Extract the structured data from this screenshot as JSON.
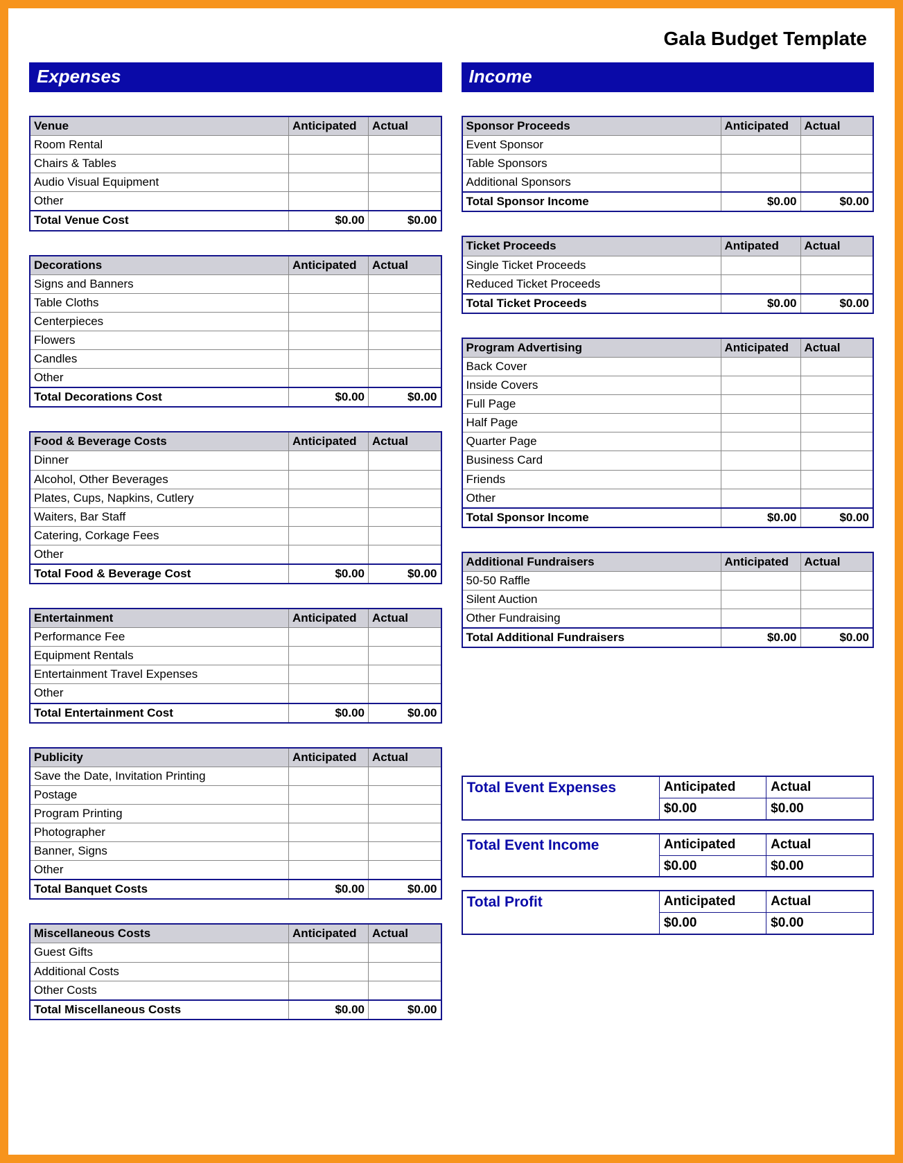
{
  "page_title": "Gala Budget Template",
  "colors": {
    "frame_border": "#f7941d",
    "banner_bg": "#0a0aa8",
    "banner_text": "#ffffff",
    "table_border": "#14148c",
    "cell_border": "#888888",
    "header_bg": "#d0d0d8",
    "summary_label_color": "#0a0aa8"
  },
  "headers": {
    "anticipated": "Anticipated",
    "antipated": "Antipated",
    "actual": "Actual"
  },
  "expenses": {
    "banner": "Expenses",
    "sections": [
      {
        "title": "Venue",
        "rows": [
          "Room Rental",
          "Chairs & Tables",
          "Audio Visual Equipment",
          "Other"
        ],
        "total_label": "Total Venue Cost",
        "total_ant": "$0.00",
        "total_act": "$0.00"
      },
      {
        "title": "Decorations",
        "rows": [
          "Signs and Banners",
          "Table Cloths",
          "Centerpieces",
          "Flowers",
          "Candles",
          "Other"
        ],
        "total_label": "Total Decorations Cost",
        "total_ant": "$0.00",
        "total_act": "$0.00"
      },
      {
        "title": "Food & Beverage Costs",
        "rows": [
          "Dinner",
          "Alcohol, Other Beverages",
          "Plates, Cups, Napkins, Cutlery",
          "Waiters, Bar Staff",
          "Catering, Corkage Fees",
          "Other"
        ],
        "total_label": "Total Food & Beverage Cost",
        "total_ant": "$0.00",
        "total_act": "$0.00"
      },
      {
        "title": "Entertainment",
        "rows": [
          "Performance Fee",
          "Equipment Rentals",
          "Entertainment Travel Expenses",
          "Other"
        ],
        "total_label": "Total Entertainment Cost",
        "total_ant": "$0.00",
        "total_act": "$0.00"
      },
      {
        "title": "Publicity",
        "rows": [
          "Save the Date, Invitation Printing",
          "Postage",
          "Program Printing",
          "Photographer",
          "Banner, Signs",
          "Other"
        ],
        "total_label": "Total Banquet Costs",
        "total_ant": "$0.00",
        "total_act": "$0.00"
      },
      {
        "title": "Miscellaneous Costs",
        "rows": [
          "Guest Gifts",
          "Additional Costs",
          "Other Costs"
        ],
        "total_label": "Total Miscellaneous Costs",
        "total_ant": "$0.00",
        "total_act": "$0.00"
      }
    ]
  },
  "income": {
    "banner": "Income",
    "sections": [
      {
        "title": "Sponsor Proceeds",
        "ant_header": "Anticipated",
        "rows": [
          "Event Sponsor",
          "Table Sponsors",
          "Additional Sponsors"
        ],
        "total_label": "Total Sponsor Income",
        "total_ant": "$0.00",
        "total_act": "$0.00"
      },
      {
        "title": "Ticket Proceeds",
        "ant_header": "Antipated",
        "rows": [
          "Single Ticket Proceeds",
          "Reduced Ticket Proceeds"
        ],
        "total_label": "Total Ticket Proceeds",
        "total_ant": "$0.00",
        "total_act": "$0.00"
      },
      {
        "title": "Program Advertising",
        "ant_header": "Anticipated",
        "rows": [
          "Back Cover",
          "Inside Covers",
          "Full Page",
          "Half Page",
          "Quarter Page",
          "Business Card",
          "Friends",
          "Other"
        ],
        "total_label": "Total Sponsor Income",
        "total_ant": "$0.00",
        "total_act": "$0.00"
      },
      {
        "title": "Additional Fundraisers",
        "ant_header": "Anticipated",
        "rows": [
          "50-50 Raffle",
          "Silent Auction",
          "Other Fundraising"
        ],
        "total_label": "Total Additional Fundraisers",
        "total_ant": "$0.00",
        "total_act": "$0.00"
      }
    ]
  },
  "summaries": [
    {
      "label": "Total Event Expenses",
      "ant_header": "Anticipated",
      "act_header": "Actual",
      "ant": "$0.00",
      "act": "$0.00"
    },
    {
      "label": "Total Event Income",
      "ant_header": "Anticipated",
      "act_header": "Actual",
      "ant": "$0.00",
      "act": "$0.00"
    },
    {
      "label": "Total Profit",
      "ant_header": "Anticipated",
      "act_header": "Actual",
      "ant": "$0.00",
      "act": "$0.00"
    }
  ]
}
